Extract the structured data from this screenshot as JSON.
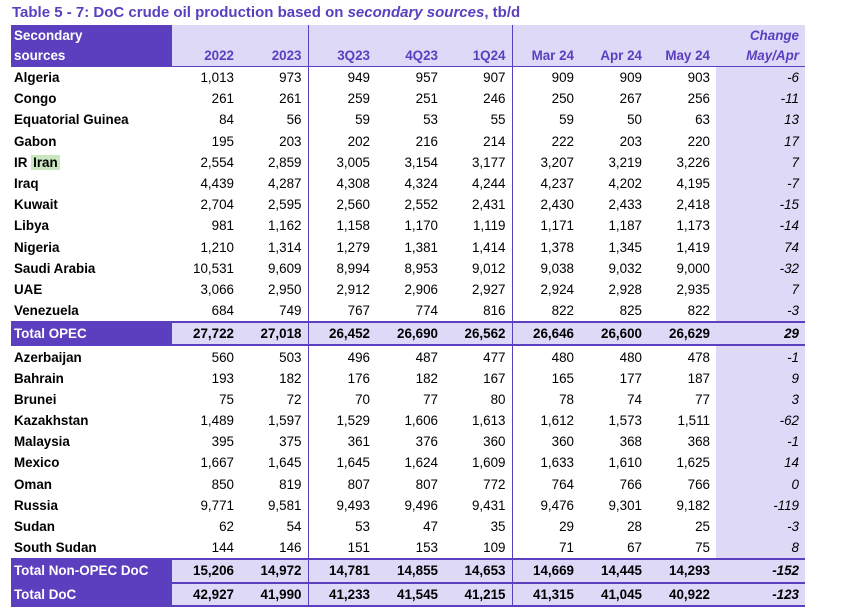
{
  "title": {
    "prefix": "Table 5 - 7: DoC crude oil production based on ",
    "italic": "secondary sources",
    "suffix": ", tb/d"
  },
  "header": {
    "label_line1": "Secondary",
    "label_line2": "sources",
    "columns": [
      "2022",
      "2023",
      "3Q23",
      "4Q23",
      "1Q24",
      "Mar 24",
      "Apr 24",
      "May 24"
    ],
    "change_line1": "Change",
    "change_line2": "May/Apr"
  },
  "opec_rows": [
    {
      "name": "Algeria",
      "values": [
        "1,013",
        "973",
        "949",
        "957",
        "907",
        "909",
        "909",
        "903"
      ],
      "change": "-6"
    },
    {
      "name": "Congo",
      "values": [
        "261",
        "261",
        "259",
        "251",
        "246",
        "250",
        "267",
        "256"
      ],
      "change": "-11"
    },
    {
      "name": "Equatorial Guinea",
      "values": [
        "84",
        "56",
        "59",
        "53",
        "55",
        "59",
        "50",
        "63"
      ],
      "change": "13"
    },
    {
      "name": "Gabon",
      "values": [
        "195",
        "203",
        "202",
        "216",
        "214",
        "222",
        "203",
        "220"
      ],
      "change": "17"
    },
    {
      "name_prefix": "IR ",
      "name_highlight": "Iran",
      "values": [
        "2,554",
        "2,859",
        "3,005",
        "3,154",
        "3,177",
        "3,207",
        "3,219",
        "3,226"
      ],
      "change": "7"
    },
    {
      "name": "Iraq",
      "values": [
        "4,439",
        "4,287",
        "4,308",
        "4,324",
        "4,244",
        "4,237",
        "4,202",
        "4,195"
      ],
      "change": "-7"
    },
    {
      "name": "Kuwait",
      "values": [
        "2,704",
        "2,595",
        "2,560",
        "2,552",
        "2,431",
        "2,430",
        "2,433",
        "2,418"
      ],
      "change": "-15"
    },
    {
      "name": "Libya",
      "values": [
        "981",
        "1,162",
        "1,158",
        "1,170",
        "1,119",
        "1,171",
        "1,187",
        "1,173"
      ],
      "change": "-14"
    },
    {
      "name": "Nigeria",
      "values": [
        "1,210",
        "1,314",
        "1,279",
        "1,381",
        "1,414",
        "1,378",
        "1,345",
        "1,419"
      ],
      "change": "74"
    },
    {
      "name": "Saudi Arabia",
      "values": [
        "10,531",
        "9,609",
        "8,994",
        "8,953",
        "9,012",
        "9,038",
        "9,032",
        "9,000"
      ],
      "change": "-32"
    },
    {
      "name": "UAE",
      "values": [
        "3,066",
        "2,950",
        "2,912",
        "2,906",
        "2,927",
        "2,924",
        "2,928",
        "2,935"
      ],
      "change": "7"
    },
    {
      "name": "Venezuela",
      "values": [
        "684",
        "749",
        "767",
        "774",
        "816",
        "822",
        "825",
        "822"
      ],
      "change": "-3"
    }
  ],
  "total_opec": {
    "name": "Total  OPEC",
    "values": [
      "27,722",
      "27,018",
      "26,452",
      "26,690",
      "26,562",
      "26,646",
      "26,600",
      "26,629"
    ],
    "change": "29"
  },
  "nonopec_rows": [
    {
      "name": "Azerbaijan",
      "values": [
        "560",
        "503",
        "496",
        "487",
        "477",
        "480",
        "480",
        "478"
      ],
      "change": "-1"
    },
    {
      "name": "Bahrain",
      "values": [
        "193",
        "182",
        "176",
        "182",
        "167",
        "165",
        "177",
        "187"
      ],
      "change": "9"
    },
    {
      "name": "Brunei",
      "values": [
        "75",
        "72",
        "70",
        "77",
        "80",
        "78",
        "74",
        "77"
      ],
      "change": "3"
    },
    {
      "name": "Kazakhstan",
      "values": [
        "1,489",
        "1,597",
        "1,529",
        "1,606",
        "1,613",
        "1,612",
        "1,573",
        "1,511"
      ],
      "change": "-62"
    },
    {
      "name": "Malaysia",
      "values": [
        "395",
        "375",
        "361",
        "376",
        "360",
        "360",
        "368",
        "368"
      ],
      "change": "-1"
    },
    {
      "name": "Mexico",
      "values": [
        "1,667",
        "1,645",
        "1,645",
        "1,624",
        "1,609",
        "1,633",
        "1,610",
        "1,625"
      ],
      "change": "14"
    },
    {
      "name": "Oman",
      "values": [
        "850",
        "819",
        "807",
        "807",
        "772",
        "764",
        "766",
        "766"
      ],
      "change": "0"
    },
    {
      "name": "Russia",
      "values": [
        "9,771",
        "9,581",
        "9,493",
        "9,496",
        "9,431",
        "9,476",
        "9,301",
        "9,182"
      ],
      "change": "-119"
    },
    {
      "name": "Sudan",
      "values": [
        "62",
        "54",
        "53",
        "47",
        "35",
        "29",
        "28",
        "25"
      ],
      "change": "-3"
    },
    {
      "name": "South Sudan",
      "values": [
        "144",
        "146",
        "151",
        "153",
        "109",
        "71",
        "67",
        "75"
      ],
      "change": "8"
    }
  ],
  "total_nonopec": {
    "name": "Total Non-OPEC DoC",
    "values": [
      "15,206",
      "14,972",
      "14,781",
      "14,855",
      "14,653",
      "14,669",
      "14,445",
      "14,293"
    ],
    "change": "-152"
  },
  "total_doc": {
    "name": "Total DoC",
    "values": [
      "42,927",
      "41,990",
      "41,233",
      "41,545",
      "41,215",
      "41,315",
      "41,045",
      "40,922"
    ],
    "change": "-123"
  },
  "colors": {
    "accent": "#5b3fbf",
    "header_fill": "#ded9f7",
    "highlight": "#c9e6c1"
  }
}
